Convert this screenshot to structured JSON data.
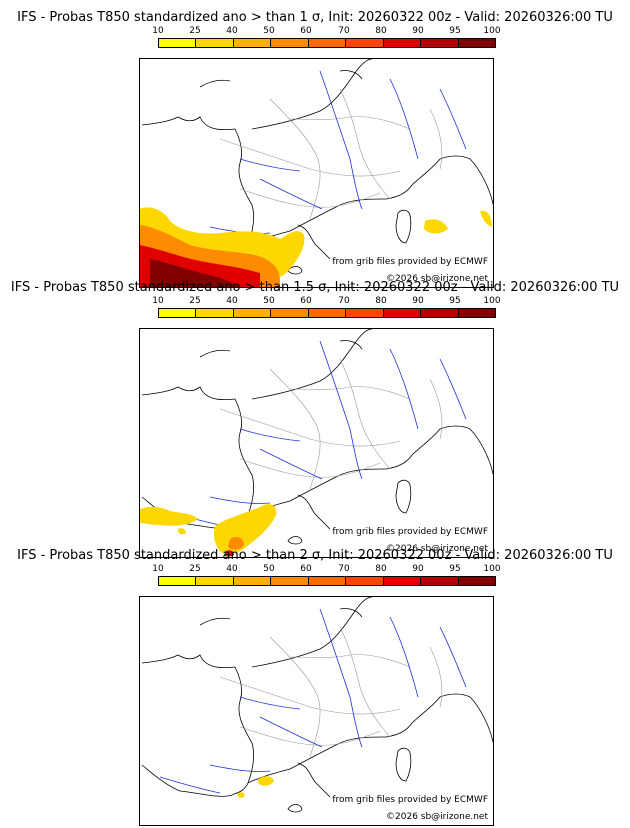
{
  "colorbar": {
    "ticks": [
      "10",
      "25",
      "40",
      "50",
      "60",
      "70",
      "80",
      "90",
      "95",
      "100"
    ],
    "colors": [
      "#ffff00",
      "#ffd700",
      "#ffb000",
      "#ff8c00",
      "#ff6a00",
      "#ff4500",
      "#e00000",
      "#b00000",
      "#800000"
    ]
  },
  "credits": {
    "source": "from grib files provided by ECMWF",
    "copyright": "©2026 sb@irizone.net"
  },
  "panels": [
    {
      "title": "IFS - Probas T850  standardized ano > than 1 σ, Init: 20260322 00z - Valid: 20260326:00 TU"
    },
    {
      "title": "IFS - Probas T850  standardized ano > than 1.5 σ, Init: 20260322 00z - Valid: 20260326:00 TU"
    },
    {
      "title": "IFS - Probas T850  standardized ano > than 2 σ, Init: 20260322 00z - Valid: 20260326:00 TU"
    }
  ]
}
